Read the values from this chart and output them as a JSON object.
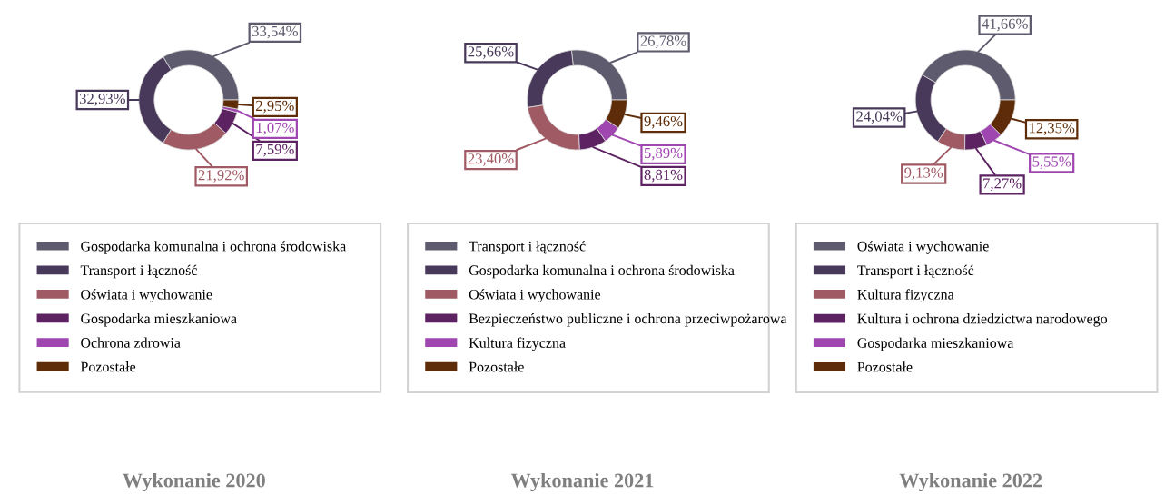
{
  "chart_data": [
    {
      "type": "donut",
      "title": "Wykonanie 2020",
      "legend": "bottom",
      "categories": [
        "Gospodarka komunalna i ochrona środowiska",
        "Transport i łączność",
        "Oświata i wychowanie",
        "Gospodarka mieszkaniowa",
        "Ochrona zdrowia",
        "Pozostałe"
      ],
      "values": [
        33.54,
        32.93,
        21.92,
        7.59,
        1.07,
        2.95
      ],
      "value_labels": [
        "33,54%",
        "32,93%",
        "21,92%",
        "7,59%",
        "1,07%",
        "2,95%"
      ],
      "colors": [
        "#5d5b6d",
        "#48385a",
        "#9f5a64",
        "#5c2262",
        "#a046b0",
        "#5e2c08"
      ]
    },
    {
      "type": "donut",
      "title": "Wykonanie 2021",
      "legend": "bottom",
      "categories": [
        "Transport i łączność",
        "Gospodarka komunalna i ochrona środowiska",
        "Oświata i wychowanie",
        "Bezpieczeństwo publiczne i ochrona przeciwpożarowa",
        "Kultura fizyczna",
        "Pozostałe"
      ],
      "values": [
        26.78,
        25.66,
        23.4,
        8.81,
        5.89,
        9.46
      ],
      "value_labels": [
        "26,78%",
        "25,66%",
        "23,40%",
        "8,81%",
        "5,89%",
        "9,46%"
      ],
      "colors": [
        "#5d5b6d",
        "#48385a",
        "#9f5a64",
        "#5c2262",
        "#a046b0",
        "#5e2c08"
      ]
    },
    {
      "type": "donut",
      "title": "Wykonanie 2022",
      "legend": "bottom",
      "categories": [
        "Oświata i wychowanie",
        "Transport i łączność",
        "Kultura fizyczna",
        "Kultura i ochrona dziedzictwa narodowego",
        "Gospodarka mieszkaniowa",
        "Pozostałe"
      ],
      "values": [
        41.66,
        24.04,
        9.13,
        7.27,
        5.55,
        12.35
      ],
      "value_labels": [
        "41,66%",
        "24,04%",
        "9,13%",
        "7,27%",
        "5,55%",
        "12,35%"
      ],
      "colors": [
        "#5d5b6d",
        "#48385a",
        "#9f5a64",
        "#5c2262",
        "#a046b0",
        "#5e2c08"
      ]
    }
  ]
}
